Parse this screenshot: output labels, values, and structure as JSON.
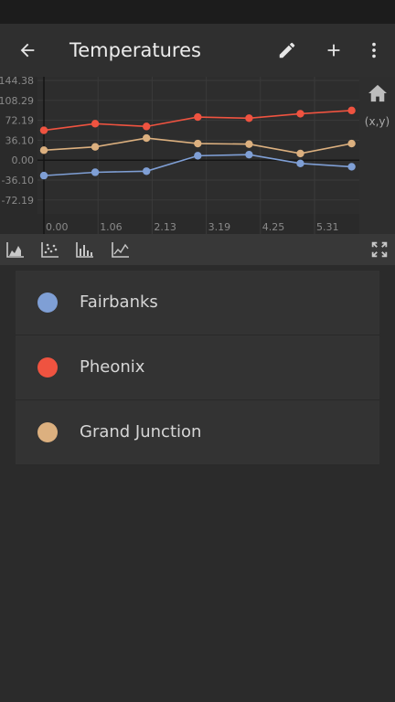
{
  "app": {
    "title": "Temperatures"
  },
  "icons": {
    "back": "arrow-left-icon",
    "edit": "pencil-icon",
    "add": "plus-icon",
    "more": "more-vert-icon",
    "home": "home-icon",
    "coords": "(x,y)",
    "fullscreen": "fullscreen-icon"
  },
  "toolbar": {
    "tools": [
      "area-chart-icon",
      "scatter-chart-icon",
      "bar-chart-icon",
      "line-chart-icon"
    ]
  },
  "chart_data": {
    "type": "line",
    "x": [
      0.0,
      1.0,
      2.0,
      3.0,
      4.0,
      5.0,
      6.0
    ],
    "x_ticks": [
      "0.00",
      "1.06",
      "2.13",
      "3.19",
      "4.25",
      "5.31"
    ],
    "y_ticks": [
      "144.38",
      "108.29",
      "72.19",
      "36.10",
      "0.00",
      "-36.10",
      "-72.19"
    ],
    "ylim": [
      -72.19,
      144.38
    ],
    "series": [
      {
        "name": "Fairbanks",
        "color": "#7f9fd5",
        "values": [
          -28,
          -22,
          -20,
          8,
          10,
          -6,
          -12
        ]
      },
      {
        "name": "Pheonix",
        "color": "#ef5340",
        "values": [
          54,
          66,
          61,
          78,
          76,
          84,
          90
        ]
      },
      {
        "name": "Grand Junction",
        "color": "#dcb07f",
        "values": [
          18,
          24,
          40,
          30,
          29,
          12,
          30
        ]
      }
    ]
  }
}
